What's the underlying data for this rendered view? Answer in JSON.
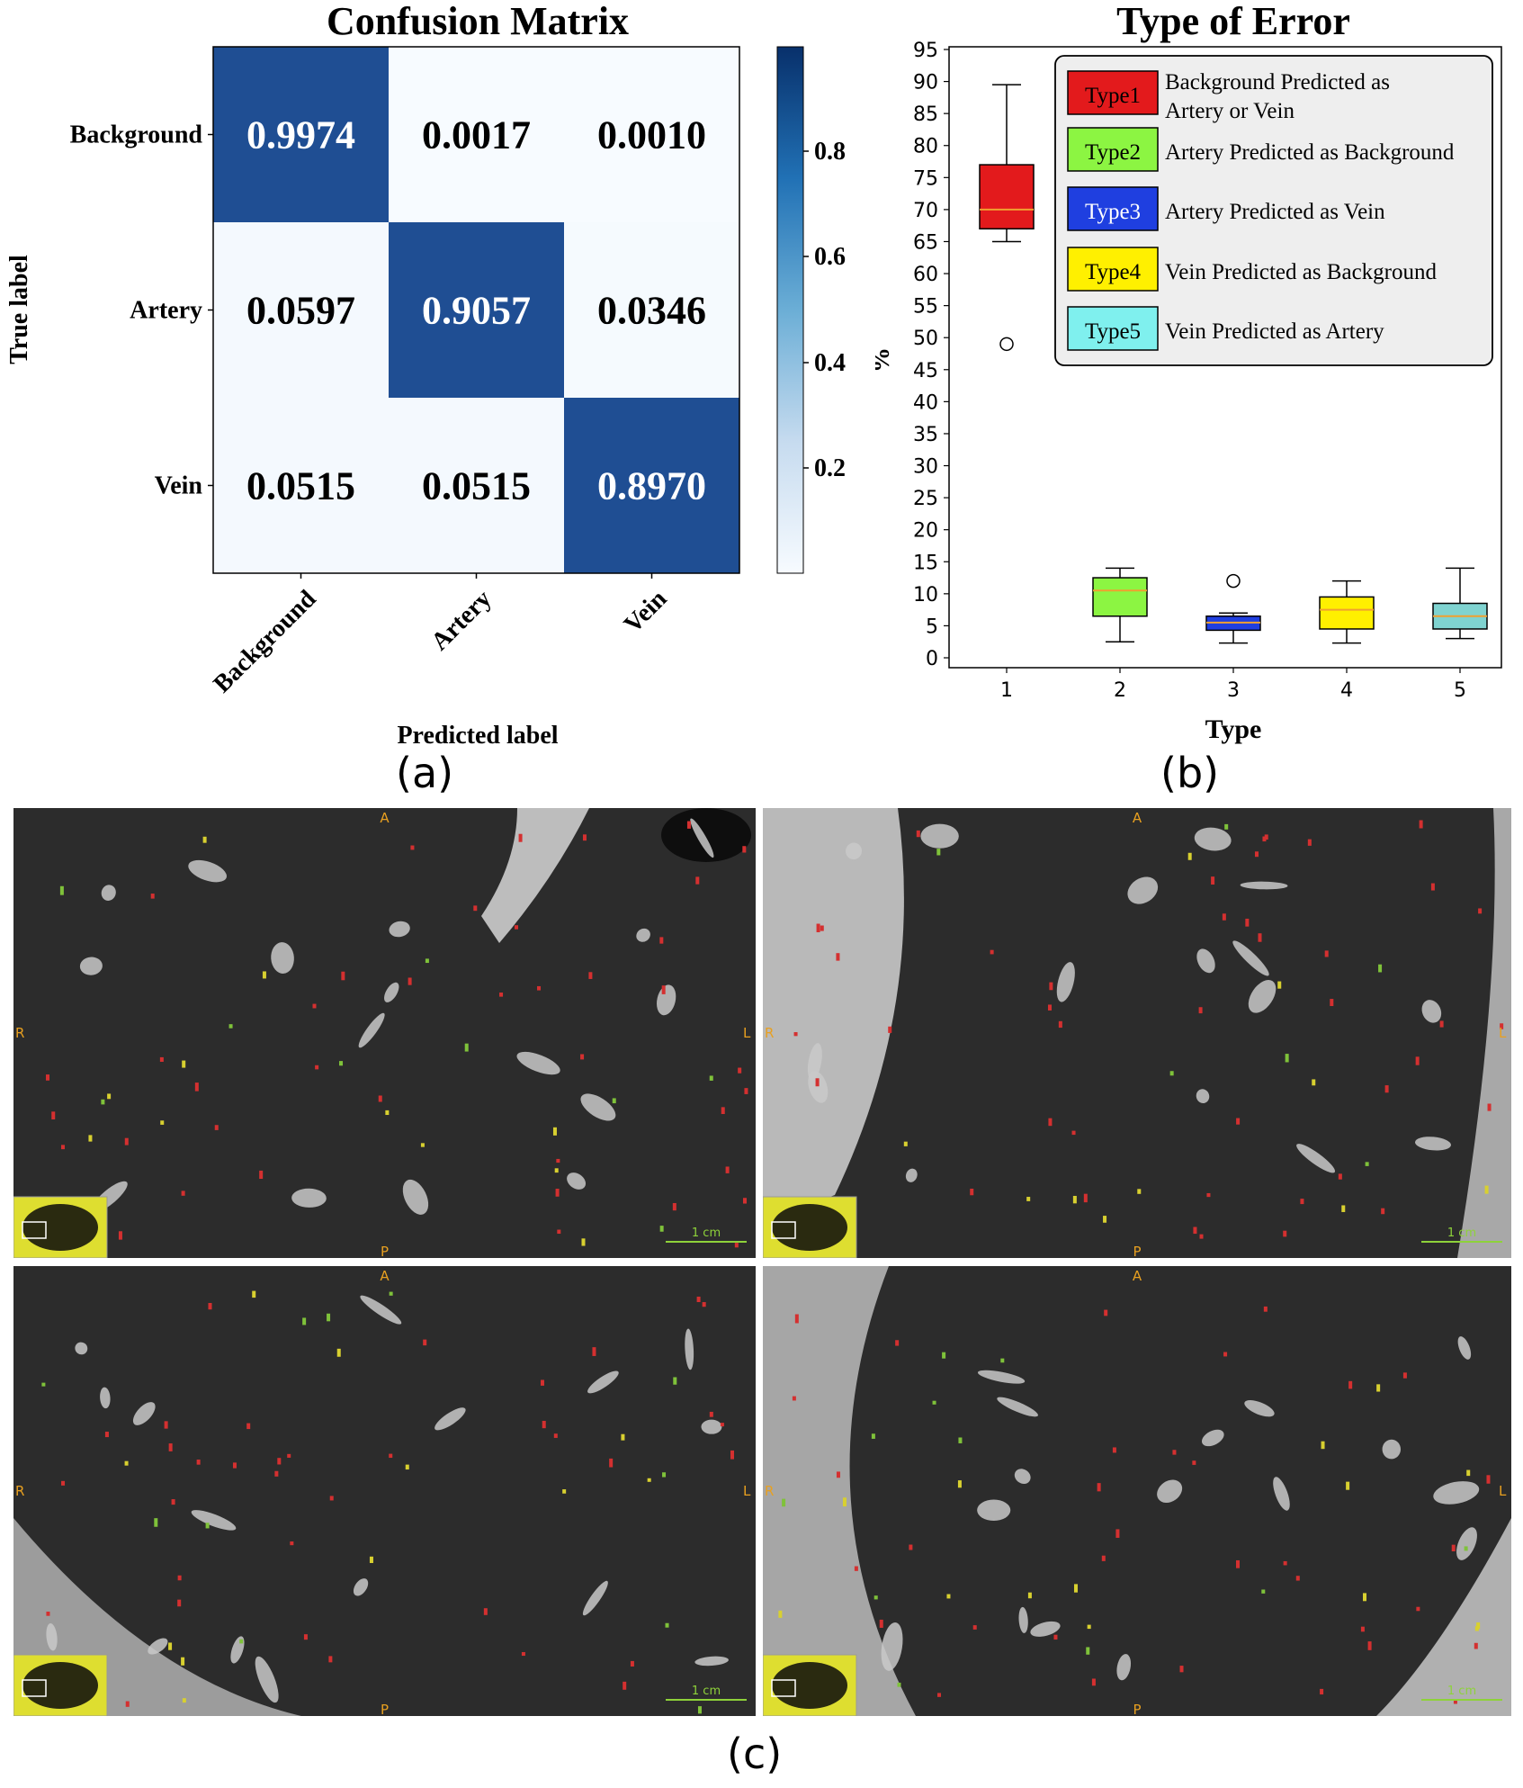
{
  "confusion": {
    "title": "Confusion Matrix",
    "ylabel": "True label",
    "xlabel": "Predicted label",
    "row_labels": [
      "Background",
      "Artery",
      "Vein"
    ],
    "col_labels": [
      "Background",
      "Artery",
      "Vein"
    ],
    "cell_text": [
      [
        "0.9974",
        "0.0017",
        "0.0010"
      ],
      [
        "0.0597",
        "0.9057",
        "0.0346"
      ],
      [
        "0.0515",
        "0.0515",
        "0.8970"
      ]
    ],
    "colorbar_ticks": [
      "0.8",
      "0.6",
      "0.4",
      "0.2"
    ],
    "panel_label": "(a)"
  },
  "boxplot": {
    "title": "Type of Error",
    "ylabel": "%",
    "xlabel": "Type",
    "x_ticks": [
      "1",
      "2",
      "3",
      "4",
      "5"
    ],
    "y_ticks": [
      "0",
      "5",
      "10",
      "15",
      "20",
      "25",
      "30",
      "35",
      "40",
      "45",
      "50",
      "55",
      "60",
      "65",
      "70",
      "75",
      "80",
      "85",
      "90",
      "95"
    ],
    "legend": [
      {
        "tag": "Type1",
        "text": "Background Predicted as",
        "text2": "Artery or Vein",
        "color": "#e31a1c",
        "tagcolor": "#000000"
      },
      {
        "tag": "Type2",
        "text": "Artery Predicted as Background",
        "text2": "",
        "color": "#8cf542",
        "tagcolor": "#000000"
      },
      {
        "tag": "Type3",
        "text": "Artery Predicted as Vein",
        "text2": "",
        "color": "#1f3fe0",
        "tagcolor": "#ffffff"
      },
      {
        "tag": "Type4",
        "text": "Vein Predicted as Background",
        "text2": "",
        "color": "#fff000",
        "tagcolor": "#000000"
      },
      {
        "tag": "Type5",
        "text": "Vein Predicted as Artery",
        "text2": "",
        "color": "#7ff0ee",
        "tagcolor": "#000000"
      }
    ],
    "panel_label": "(b)"
  },
  "ct_panels": {
    "orient": {
      "top": "A",
      "bottom": "P",
      "left": "R",
      "right": "L"
    },
    "scale": "1 cm",
    "panel_label": "(c)"
  },
  "chart_data": [
    {
      "type": "heatmap",
      "title": "Confusion Matrix",
      "xlabel": "Predicted label",
      "ylabel": "True label",
      "x": [
        "Background",
        "Artery",
        "Vein"
      ],
      "y": [
        "Background",
        "Artery",
        "Vein"
      ],
      "values": [
        [
          0.9974,
          0.0017,
          0.001
        ],
        [
          0.0597,
          0.9057,
          0.0346
        ],
        [
          0.0515,
          0.0515,
          0.897
        ]
      ],
      "colorbar_range": [
        0,
        1
      ],
      "colormap": "Blues"
    },
    {
      "type": "box",
      "title": "Type of Error",
      "xlabel": "Type",
      "ylabel": "%",
      "categories": [
        "1",
        "2",
        "3",
        "4",
        "5"
      ],
      "ylim": [
        0,
        95
      ],
      "legend_position": "top-right",
      "boxes": [
        {
          "name": "Type1",
          "min": 65,
          "q1": 67,
          "median": 70,
          "q3": 77,
          "max": 89.5,
          "outliers": [
            49
          ],
          "color": "#e31a1c"
        },
        {
          "name": "Type2",
          "min": 2.5,
          "q1": 6.5,
          "median": 10.5,
          "q3": 12.5,
          "max": 14,
          "outliers": [],
          "color": "#8cf542"
        },
        {
          "name": "Type3",
          "min": 2.3,
          "q1": 4.3,
          "median": 5.5,
          "q3": 6.5,
          "max": 7,
          "outliers": [
            12
          ],
          "color": "#1f3fe0"
        },
        {
          "name": "Type4",
          "min": 2.3,
          "q1": 4.5,
          "median": 7.5,
          "q3": 9.5,
          "max": 12,
          "outliers": [],
          "color": "#fff000"
        },
        {
          "name": "Type5",
          "min": 3,
          "q1": 4.5,
          "median": 6.5,
          "q3": 8.5,
          "max": 14,
          "outliers": [],
          "color": "#7fd3d0"
        }
      ]
    }
  ]
}
